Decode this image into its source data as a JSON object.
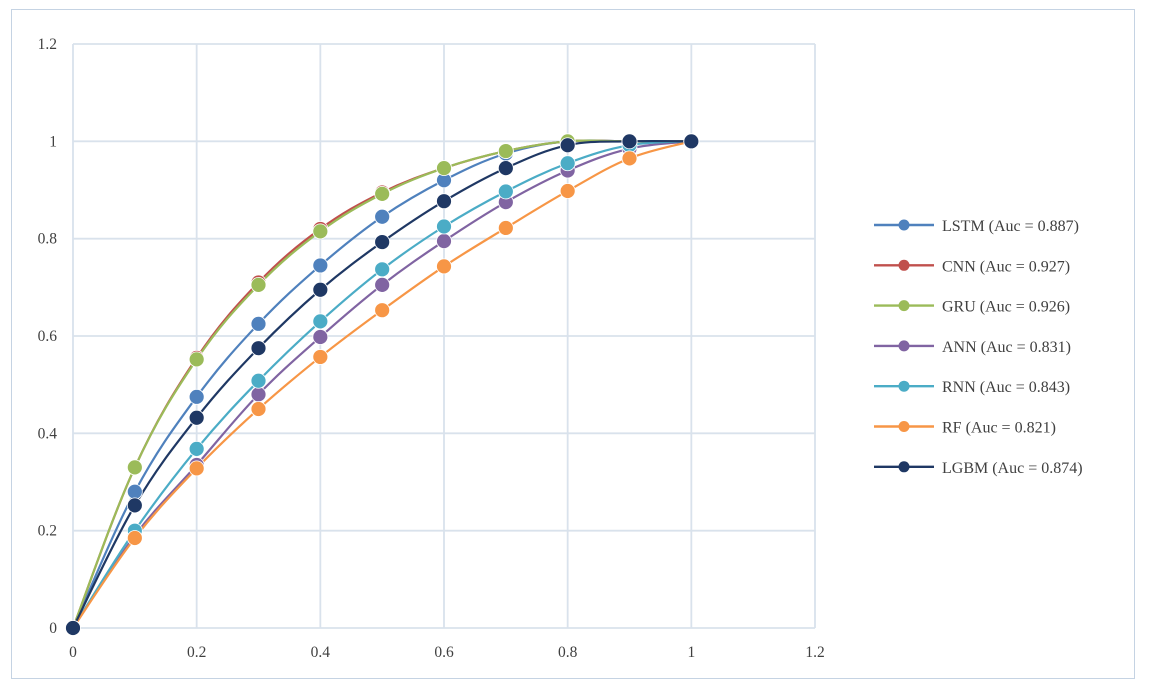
{
  "chart_data": {
    "type": "line",
    "title": "",
    "xlabel": "",
    "ylabel": "",
    "xlim": [
      0,
      1.2
    ],
    "ylim": [
      0,
      1.2
    ],
    "x_ticks": [
      "0",
      "0.2",
      "0.4",
      "0.6",
      "0.8",
      "1",
      "1.2"
    ],
    "y_ticks": [
      "0",
      "0.2",
      "0.4",
      "0.6",
      "0.8",
      "1",
      "1.2"
    ],
    "grid": true,
    "legend_position": "right",
    "x": [
      0,
      0.1,
      0.2,
      0.3,
      0.4,
      0.5,
      0.6,
      0.7,
      0.8,
      0.9,
      1.0
    ],
    "series": [
      {
        "name": "LSTM (Auc = 0.887)",
        "color": "#4f81bd",
        "values": [
          0,
          0.28,
          0.475,
          0.625,
          0.745,
          0.845,
          0.92,
          0.975,
          1.0,
          1.0,
          1.0
        ]
      },
      {
        "name": "CNN (Auc = 0.927)",
        "color": "#c0504d",
        "values": [
          0,
          0.33,
          0.555,
          0.71,
          0.82,
          0.895,
          0.945,
          0.98,
          1.0,
          1.0,
          1.0
        ]
      },
      {
        "name": "GRU (Auc = 0.926)",
        "color": "#9bbb59",
        "values": [
          0,
          0.33,
          0.552,
          0.705,
          0.815,
          0.892,
          0.945,
          0.98,
          1.0,
          1.0,
          1.0
        ]
      },
      {
        "name": "ANN (Auc = 0.831)",
        "color": "#8064a2",
        "values": [
          0,
          0.19,
          0.335,
          0.48,
          0.598,
          0.705,
          0.795,
          0.875,
          0.94,
          0.985,
          1.0
        ]
      },
      {
        "name": "RNN (Auc = 0.843)",
        "color": "#4bacc6",
        "values": [
          0,
          0.2,
          0.368,
          0.508,
          0.63,
          0.737,
          0.825,
          0.897,
          0.955,
          0.992,
          1.0
        ]
      },
      {
        "name": "RF (Auc = 0.821)",
        "color": "#f79646",
        "values": [
          0,
          0.185,
          0.328,
          0.45,
          0.557,
          0.653,
          0.743,
          0.822,
          0.898,
          0.965,
          1.0
        ]
      },
      {
        "name": "LGBM (Auc = 0.874)",
        "color": "#1f3864",
        "values": [
          0,
          0.252,
          0.432,
          0.575,
          0.695,
          0.793,
          0.877,
          0.945,
          0.992,
          1.0,
          1.0
        ]
      }
    ]
  }
}
